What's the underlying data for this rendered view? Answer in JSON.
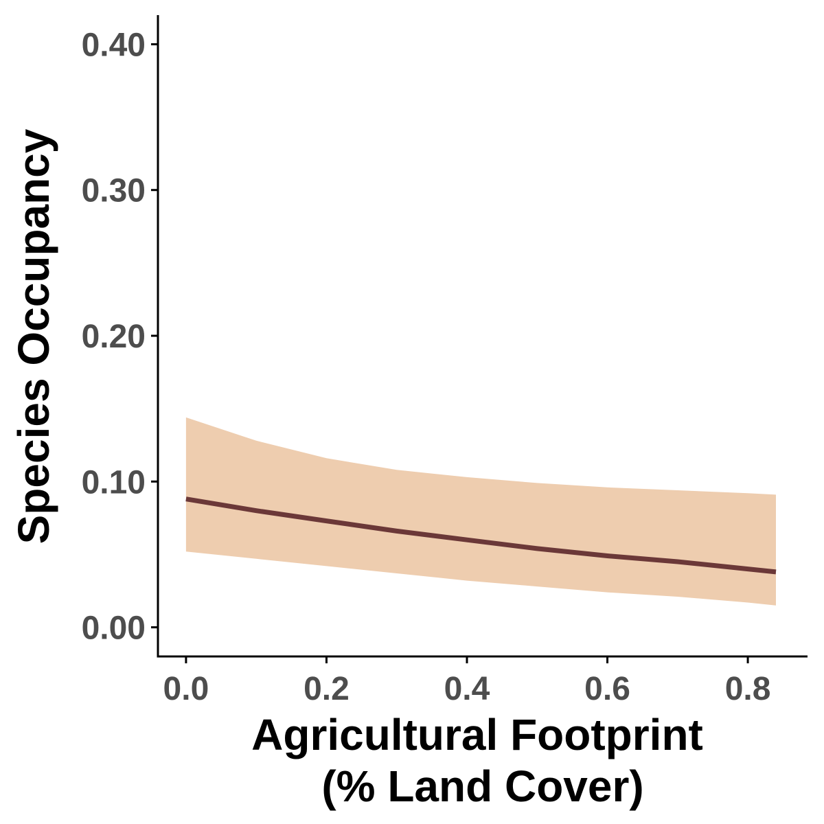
{
  "chart_data": {
    "type": "line",
    "title": "",
    "xlabel_lines": [
      "Agricultural Footprint",
      "(% Land Cover)"
    ],
    "ylabel": "Species Occupancy",
    "xlim": [
      -0.04,
      0.885
    ],
    "ylim": [
      -0.02,
      0.42
    ],
    "x_ticks": [
      0.0,
      0.2,
      0.4,
      0.6,
      0.8
    ],
    "x_tick_labels": [
      "0.0",
      "0.2",
      "0.4",
      "0.6",
      "0.8"
    ],
    "y_ticks": [
      0.0,
      0.1,
      0.2,
      0.3,
      0.4
    ],
    "y_tick_labels": [
      "0.00",
      "0.10",
      "0.20",
      "0.30",
      "0.40"
    ],
    "grid": false,
    "legend": "none",
    "series": [
      {
        "x": [
          0.0,
          0.1,
          0.2,
          0.3,
          0.4,
          0.5,
          0.6,
          0.7,
          0.8,
          0.84
        ],
        "y": [
          0.088,
          0.08,
          0.073,
          0.066,
          0.06,
          0.054,
          0.049,
          0.045,
          0.04,
          0.038
        ],
        "lower": [
          0.052,
          0.047,
          0.042,
          0.037,
          0.032,
          0.028,
          0.024,
          0.021,
          0.017,
          0.015
        ],
        "upper": [
          0.144,
          0.128,
          0.116,
          0.108,
          0.103,
          0.099,
          0.096,
          0.094,
          0.092,
          0.091
        ]
      }
    ],
    "colors": {
      "line": "#6b3838",
      "ribbon": "#eecdaf",
      "axis": "#000000",
      "tick_text": "#4d4d4d"
    }
  }
}
